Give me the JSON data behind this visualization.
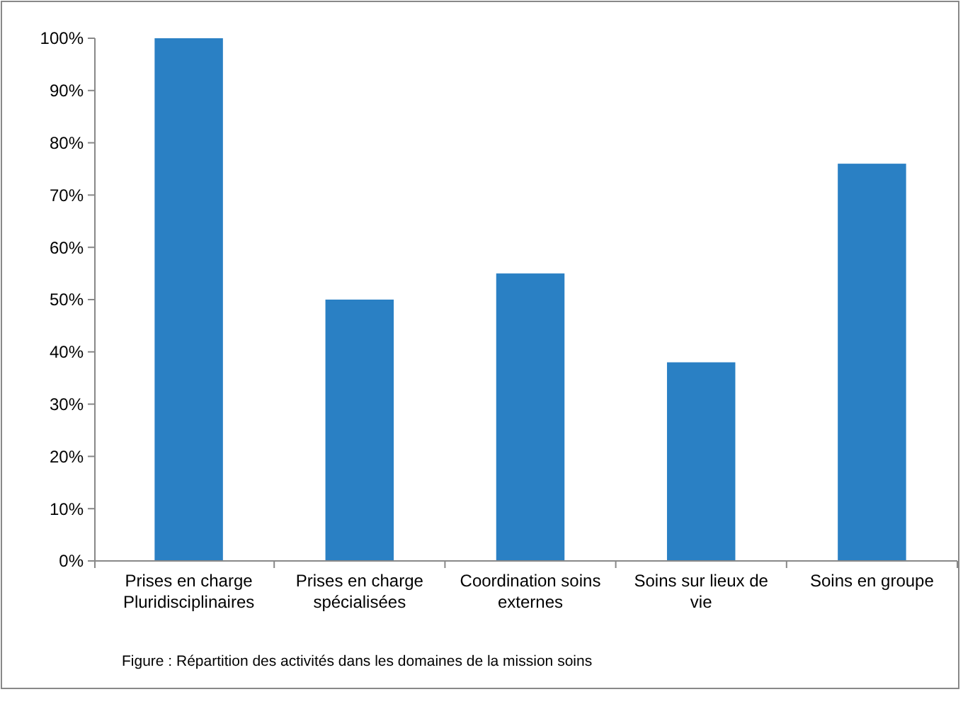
{
  "chart_data": {
    "type": "bar",
    "categories": [
      "Prises en charge Pluridisciplinaires",
      "Prises en charge spécialisées",
      "Coordination soins externes",
      "Soins sur lieux de vie",
      "Soins en groupe"
    ],
    "values": [
      100,
      50,
      55,
      38,
      76
    ],
    "color": "#2a80c4",
    "ylim": [
      0,
      100
    ],
    "yticks": [
      {
        "value": 0,
        "label": "0%"
      },
      {
        "value": 10,
        "label": "10%"
      },
      {
        "value": 20,
        "label": "20%"
      },
      {
        "value": 30,
        "label": "30%"
      },
      {
        "value": 40,
        "label": "40%"
      },
      {
        "value": 50,
        "label": "50%"
      },
      {
        "value": 60,
        "label": "60%"
      },
      {
        "value": 70,
        "label": "70%"
      },
      {
        "value": 80,
        "label": "80%"
      },
      {
        "value": 90,
        "label": "90%"
      },
      {
        "value": 100,
        "label": "100%"
      }
    ],
    "grid": false,
    "annotations": [
      "Figure  : Répartition des activités dans les domaines de la mission soins"
    ]
  }
}
